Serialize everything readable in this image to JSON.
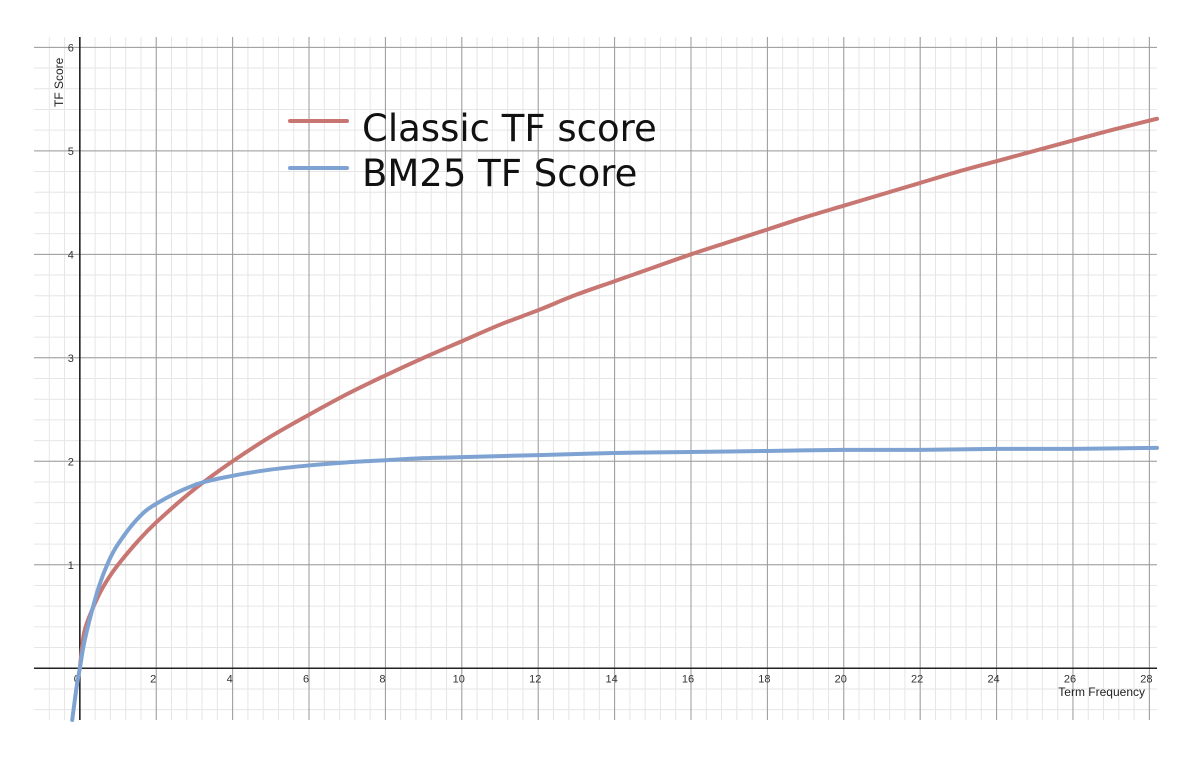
{
  "chart_data": {
    "type": "line",
    "title": "",
    "xlabel": "Term Frequency",
    "ylabel": "TF Score",
    "xlim": [
      -1.2,
      28.2
    ],
    "ylim": [
      -0.5,
      6.1
    ],
    "x_ticks": [
      0,
      2,
      4,
      6,
      8,
      10,
      12,
      14,
      16,
      18,
      20,
      22,
      24,
      26,
      28
    ],
    "x_tick_labels": [
      "0",
      "2",
      "4",
      "6",
      "8",
      "10",
      "12",
      "14",
      "16",
      "18",
      "20",
      "22",
      "24",
      "26",
      "28"
    ],
    "y_ticks": [
      1,
      2,
      3,
      4,
      5,
      6
    ],
    "y_tick_labels": [
      "1",
      "2",
      "3",
      "4",
      "5",
      "6"
    ],
    "grid": true,
    "legend": "top-left",
    "series": [
      {
        "name": "Classic TF score",
        "color": "#c87672",
        "x": [
          0,
          0.1,
          0.25,
          0.5,
          0.75,
          1,
          1.5,
          2,
          3,
          4,
          5,
          6,
          7,
          8,
          9,
          10,
          11,
          12,
          13,
          14,
          15,
          16,
          17,
          18,
          19,
          20,
          21,
          22,
          23,
          24,
          25,
          26,
          27,
          28.2
        ],
        "y": [
          0,
          0.32,
          0.5,
          0.71,
          0.87,
          1,
          1.22,
          1.41,
          1.73,
          2,
          2.24,
          2.45,
          2.65,
          2.83,
          3,
          3.16,
          3.32,
          3.46,
          3.61,
          3.74,
          3.87,
          4,
          4.12,
          4.24,
          4.36,
          4.47,
          4.58,
          4.69,
          4.8,
          4.9,
          5,
          5.1,
          5.2,
          5.31
        ]
      },
      {
        "name": "BM25 TF Score",
        "color": "#7ea3d2",
        "x": [
          -0.2,
          -0.1,
          -0.05,
          0,
          0.1,
          0.25,
          0.5,
          0.75,
          1,
          1.5,
          2,
          3,
          4,
          5,
          6,
          7,
          8,
          9,
          10,
          12,
          14,
          16,
          18,
          20,
          22,
          24,
          26,
          28.2
        ],
        "y": [
          -0.5,
          -0.22,
          -0.1,
          0,
          0.22,
          0.46,
          0.79,
          1.03,
          1.2,
          1.44,
          1.59,
          1.77,
          1.86,
          1.92,
          1.96,
          1.99,
          2.01,
          2.03,
          2.04,
          2.06,
          2.08,
          2.09,
          2.1,
          2.11,
          2.11,
          2.12,
          2.12,
          2.13
        ]
      }
    ]
  }
}
